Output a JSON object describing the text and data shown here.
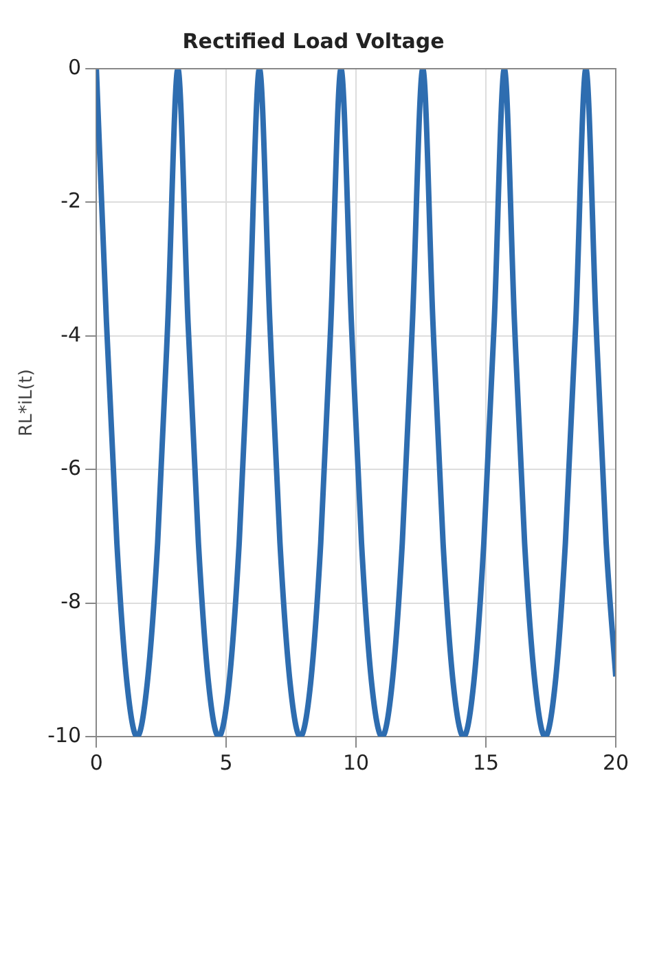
{
  "chart_data": {
    "type": "line",
    "title": "Rectified Load Voltage",
    "ylabel": "RL*iL(t)",
    "series": [
      {
        "color": "#2e6db0",
        "x": [
          0,
          0.39,
          0.79,
          1.18,
          1.57,
          1.96,
          2.36,
          2.75,
          3.14,
          3.53,
          3.93,
          4.32,
          4.71,
          5.11,
          5.5,
          5.89,
          6.28,
          6.68,
          7.07,
          7.46,
          7.85,
          8.25,
          8.64,
          9.03,
          9.42,
          9.82,
          10.21,
          10.6,
          11,
          11.39,
          11.78,
          12.17,
          12.57,
          12.96,
          13.35,
          13.74,
          14.14,
          14.53,
          14.92,
          15.32,
          15.71,
          16.1,
          16.49,
          16.89,
          17.28,
          17.67,
          18.06,
          18.46,
          18.85,
          19.24,
          19.63,
          20
        ],
        "values": [
          0,
          -3.8,
          -7.1,
          -9.2,
          -10,
          -9.2,
          -7.1,
          -3.8,
          0,
          -3.8,
          -7.1,
          -9.2,
          -10,
          -9.2,
          -7.1,
          -3.8,
          0,
          -3.8,
          -7.1,
          -9.2,
          -10,
          -9.2,
          -7.1,
          -3.8,
          0,
          -3.8,
          -7.1,
          -9.2,
          -10,
          -9.2,
          -7.1,
          -3.8,
          0,
          -3.8,
          -7.1,
          -9.2,
          -10,
          -9.2,
          -7.1,
          -3.8,
          0,
          -3.8,
          -7.1,
          -9.2,
          -10,
          -9.2,
          -7.1,
          -3.8,
          0,
          -3.8,
          -7.1,
          -9.1
        ]
      }
    ],
    "xlim": [
      0,
      20
    ],
    "xticks": [
      0,
      5,
      10,
      15,
      20
    ],
    "ylim": [
      -10,
      0
    ],
    "yticks": [
      -10,
      -8,
      -6,
      -4,
      -2,
      0
    ],
    "grid": true,
    "legend": false,
    "marker": "none",
    "line_style": "solid"
  }
}
